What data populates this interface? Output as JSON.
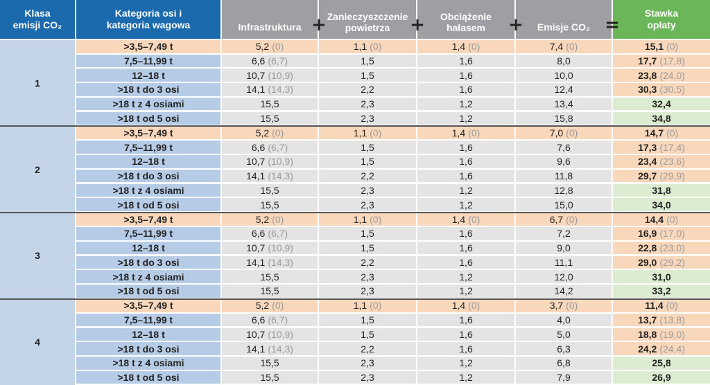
{
  "header": {
    "class_label_line1": "Klasa",
    "class_label_line2": "emisji CO₂",
    "category_label_line1": "Kategoria osi i",
    "category_label_line2": "kategoria wagowa",
    "infra": "Infrastruktura",
    "air_line1": "Zanieczyszczenie",
    "air_line2": "powietrza",
    "noise_line1": "Obciążenie",
    "noise_line2": "hałasem",
    "co2": "Emisje CO₂",
    "rate_line1": "Stawka",
    "rate_line2": "opłaty",
    "plus": "+",
    "equals": "="
  },
  "colors": {
    "header_blue": "#1a6aad",
    "header_grey": "#9e9fa3",
    "header_green": "#6cb65a",
    "row_orange": "#f9d7bb",
    "row_blue": "#b5cbe6",
    "row_grey": "#e4e4e4",
    "row_green": "#dbecd0"
  },
  "groups": [
    {
      "cls": "1",
      "rows": [
        {
          "cat": ">3,5–7,49 t",
          "infra": "5,2",
          "infra_p": "(0)",
          "air": "1,1",
          "air_p": "(0)",
          "noise": "1,4",
          "noise_p": "(0)",
          "co2": "7,4",
          "co2_p": "(0)",
          "rate": "15,1",
          "rate_p": "(0)"
        },
        {
          "cat": "7,5–11,99 t",
          "infra": "6,6",
          "infra_p": "(6,7)",
          "air": "1,5",
          "air_p": "",
          "noise": "1,6",
          "noise_p": "",
          "co2": "8,0",
          "co2_p": "",
          "rate": "17,7",
          "rate_p": "(17,8)"
        },
        {
          "cat": "12–18 t",
          "infra": "10,7",
          "infra_p": "(10,9)",
          "air": "1,5",
          "air_p": "",
          "noise": "1,6",
          "noise_p": "",
          "co2": "10,0",
          "co2_p": "",
          "rate": "23,8",
          "rate_p": "(24,0)"
        },
        {
          "cat": ">18 t do 3 osi",
          "infra": "14,1",
          "infra_p": "(14,3)",
          "air": "2,2",
          "air_p": "",
          "noise": "1,6",
          "noise_p": "",
          "co2": "12,4",
          "co2_p": "",
          "rate": "30,3",
          "rate_p": "(30,5)"
        },
        {
          "cat": ">18 t z 4 osiami",
          "infra": "15,5",
          "infra_p": "",
          "air": "2,3",
          "air_p": "",
          "noise": "1,2",
          "noise_p": "",
          "co2": "13,4",
          "co2_p": "",
          "rate": "32,4",
          "rate_p": ""
        },
        {
          "cat": ">18 t od 5 osi",
          "infra": "15,5",
          "infra_p": "",
          "air": "2,3",
          "air_p": "",
          "noise": "1,2",
          "noise_p": "",
          "co2": "15,8",
          "co2_p": "",
          "rate": "34,8",
          "rate_p": ""
        }
      ]
    },
    {
      "cls": "2",
      "rows": [
        {
          "cat": ">3,5–7,49 t",
          "infra": "5,2",
          "infra_p": "(0)",
          "air": "1,1",
          "air_p": "(0)",
          "noise": "1,4",
          "noise_p": "(0)",
          "co2": "7,0",
          "co2_p": "(0)",
          "rate": "14,7",
          "rate_p": "(0)"
        },
        {
          "cat": "7,5–11,99 t",
          "infra": "6,6",
          "infra_p": "(6,7)",
          "air": "1,5",
          "air_p": "",
          "noise": "1,6",
          "noise_p": "",
          "co2": "7,6",
          "co2_p": "",
          "rate": "17,3",
          "rate_p": "(17,4)"
        },
        {
          "cat": "12–18 t",
          "infra": "10,7",
          "infra_p": "(10,9)",
          "air": "1,5",
          "air_p": "",
          "noise": "1,6",
          "noise_p": "",
          "co2": "9,6",
          "co2_p": "",
          "rate": "23,4",
          "rate_p": "(23,6)"
        },
        {
          "cat": ">18 t do 3 osi",
          "infra": "14,1",
          "infra_p": "(14,3)",
          "air": "2,2",
          "air_p": "",
          "noise": "1,6",
          "noise_p": "",
          "co2": "11,8",
          "co2_p": "",
          "rate": "29,7",
          "rate_p": "(29,9)"
        },
        {
          "cat": ">18 t z 4 osiami",
          "infra": "15,5",
          "infra_p": "",
          "air": "2,3",
          "air_p": "",
          "noise": "1,2",
          "noise_p": "",
          "co2": "12,8",
          "co2_p": "",
          "rate": "31,8",
          "rate_p": ""
        },
        {
          "cat": ">18 t od 5 osi",
          "infra": "15,5",
          "infra_p": "",
          "air": "2,3",
          "air_p": "",
          "noise": "1,2",
          "noise_p": "",
          "co2": "15,0",
          "co2_p": "",
          "rate": "34,0",
          "rate_p": ""
        }
      ]
    },
    {
      "cls": "3",
      "rows": [
        {
          "cat": ">3,5–7,49 t",
          "infra": "5,2",
          "infra_p": "(0)",
          "air": "1,1",
          "air_p": "(0)",
          "noise": "1,4",
          "noise_p": "(0)",
          "co2": "6,7",
          "co2_p": "(0)",
          "rate": "14,4",
          "rate_p": "(0)"
        },
        {
          "cat": "7,5–11,99 t",
          "infra": "6,6",
          "infra_p": "(6,7)",
          "air": "1,5",
          "air_p": "",
          "noise": "1,6",
          "noise_p": "",
          "co2": "7,2",
          "co2_p": "",
          "rate": "16,9",
          "rate_p": "(17,0)"
        },
        {
          "cat": "12–18 t",
          "infra": "10,7",
          "infra_p": "(10,9)",
          "air": "1,5",
          "air_p": "",
          "noise": "1,6",
          "noise_p": "",
          "co2": "9,0",
          "co2_p": "",
          "rate": "22,8",
          "rate_p": "(23,0)"
        },
        {
          "cat": ">18 t do 3 osi",
          "infra": "14,1",
          "infra_p": "(14,3)",
          "air": "2,2",
          "air_p": "",
          "noise": "1,6",
          "noise_p": "",
          "co2": "11,1",
          "co2_p": "",
          "rate": "29,0",
          "rate_p": "(29,2)"
        },
        {
          "cat": ">18 t z 4 osiami",
          "infra": "15,5",
          "infra_p": "",
          "air": "2,3",
          "air_p": "",
          "noise": "1,2",
          "noise_p": "",
          "co2": "12,0",
          "co2_p": "",
          "rate": "31,0",
          "rate_p": ""
        },
        {
          "cat": ">18 t od 5 osi",
          "infra": "15,5",
          "infra_p": "",
          "air": "2,3",
          "air_p": "",
          "noise": "1,2",
          "noise_p": "",
          "co2": "14,2",
          "co2_p": "",
          "rate": "33,2",
          "rate_p": ""
        }
      ]
    },
    {
      "cls": "4",
      "rows": [
        {
          "cat": ">3,5–7,49 t",
          "infra": "5,2",
          "infra_p": "(0)",
          "air": "1,1",
          "air_p": "(0)",
          "noise": "1,4",
          "noise_p": "(0)",
          "co2": "3,7",
          "co2_p": "(0)",
          "rate": "11,4",
          "rate_p": "(0)"
        },
        {
          "cat": "7,5–11,99 t",
          "infra": "6,6",
          "infra_p": "(6,7)",
          "air": "1,5",
          "air_p": "",
          "noise": "1,6",
          "noise_p": "",
          "co2": "4,0",
          "co2_p": "",
          "rate": "13,7",
          "rate_p": "(13,8)"
        },
        {
          "cat": "12–18 t",
          "infra": "10,7",
          "infra_p": "(10,9)",
          "air": "1,5",
          "air_p": "",
          "noise": "1,6",
          "noise_p": "",
          "co2": "5,0",
          "co2_p": "",
          "rate": "18,8",
          "rate_p": "(19,0)"
        },
        {
          "cat": ">18 t do 3 osi",
          "infra": "14,1",
          "infra_p": "(14,3)",
          "air": "2,2",
          "air_p": "",
          "noise": "1,6",
          "noise_p": "",
          "co2": "6,3",
          "co2_p": "",
          "rate": "24,2",
          "rate_p": "(24,4)"
        },
        {
          "cat": ">18 t z 4 osiami",
          "infra": "15,5",
          "infra_p": "",
          "air": "2,3",
          "air_p": "",
          "noise": "1,2",
          "noise_p": "",
          "co2": "6,8",
          "co2_p": "",
          "rate": "25,8",
          "rate_p": ""
        },
        {
          "cat": ">18 t od 5 osi",
          "infra": "15,5",
          "infra_p": "",
          "air": "2,3",
          "air_p": "",
          "noise": "1,2",
          "noise_p": "",
          "co2": "7,9",
          "co2_p": "",
          "rate": "26,9",
          "rate_p": ""
        }
      ]
    }
  ]
}
